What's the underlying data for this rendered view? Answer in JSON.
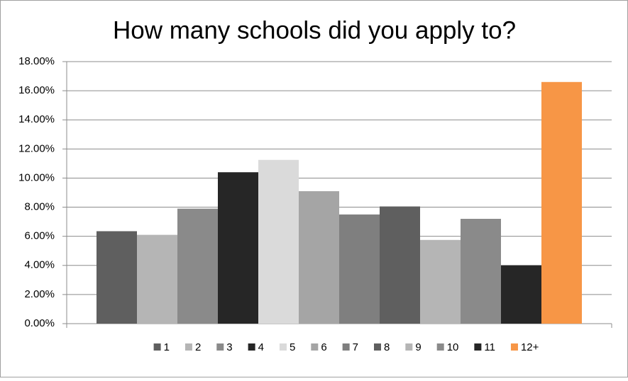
{
  "chart_data": {
    "type": "bar",
    "title": "How many schools did you apply to?",
    "categories": [
      null
    ],
    "series": [
      {
        "name": "1",
        "color": "#5f5f5f",
        "values": [
          6.35
        ]
      },
      {
        "name": "2",
        "color": "#b5b5b5",
        "values": [
          6.1
        ]
      },
      {
        "name": "3",
        "color": "#8a8a8a",
        "values": [
          7.9
        ]
      },
      {
        "name": "4",
        "color": "#262626",
        "values": [
          10.4
        ]
      },
      {
        "name": "5",
        "color": "#dadada",
        "values": [
          11.25
        ]
      },
      {
        "name": "6",
        "color": "#a5a5a5",
        "values": [
          9.1
        ]
      },
      {
        "name": "7",
        "color": "#7f7f7f",
        "values": [
          7.5
        ]
      },
      {
        "name": "8",
        "color": "#5f5f5f",
        "values": [
          8.05
        ]
      },
      {
        "name": "9",
        "color": "#b5b5b5",
        "values": [
          5.75
        ]
      },
      {
        "name": "10",
        "color": "#8a8a8a",
        "values": [
          7.2
        ]
      },
      {
        "name": "11",
        "color": "#262626",
        "values": [
          4.0
        ]
      },
      {
        "name": "12+",
        "color": "#f79646",
        "values": [
          16.6
        ]
      }
    ],
    "ylim": [
      0,
      18
    ],
    "yticks": [
      {
        "value": 0,
        "label": "0.00%"
      },
      {
        "value": 2,
        "label": "2.00%"
      },
      {
        "value": 4,
        "label": "4.00%"
      },
      {
        "value": 6,
        "label": "6.00%"
      },
      {
        "value": 8,
        "label": "8.00%"
      },
      {
        "value": 10,
        "label": "10.00%"
      },
      {
        "value": 12,
        "label": "12.00%"
      },
      {
        "value": 14,
        "label": "14.00%"
      },
      {
        "value": 16,
        "label": "16.00%"
      },
      {
        "value": 18,
        "label": "18.00%"
      }
    ],
    "grid": true,
    "legend": "bottom"
  }
}
